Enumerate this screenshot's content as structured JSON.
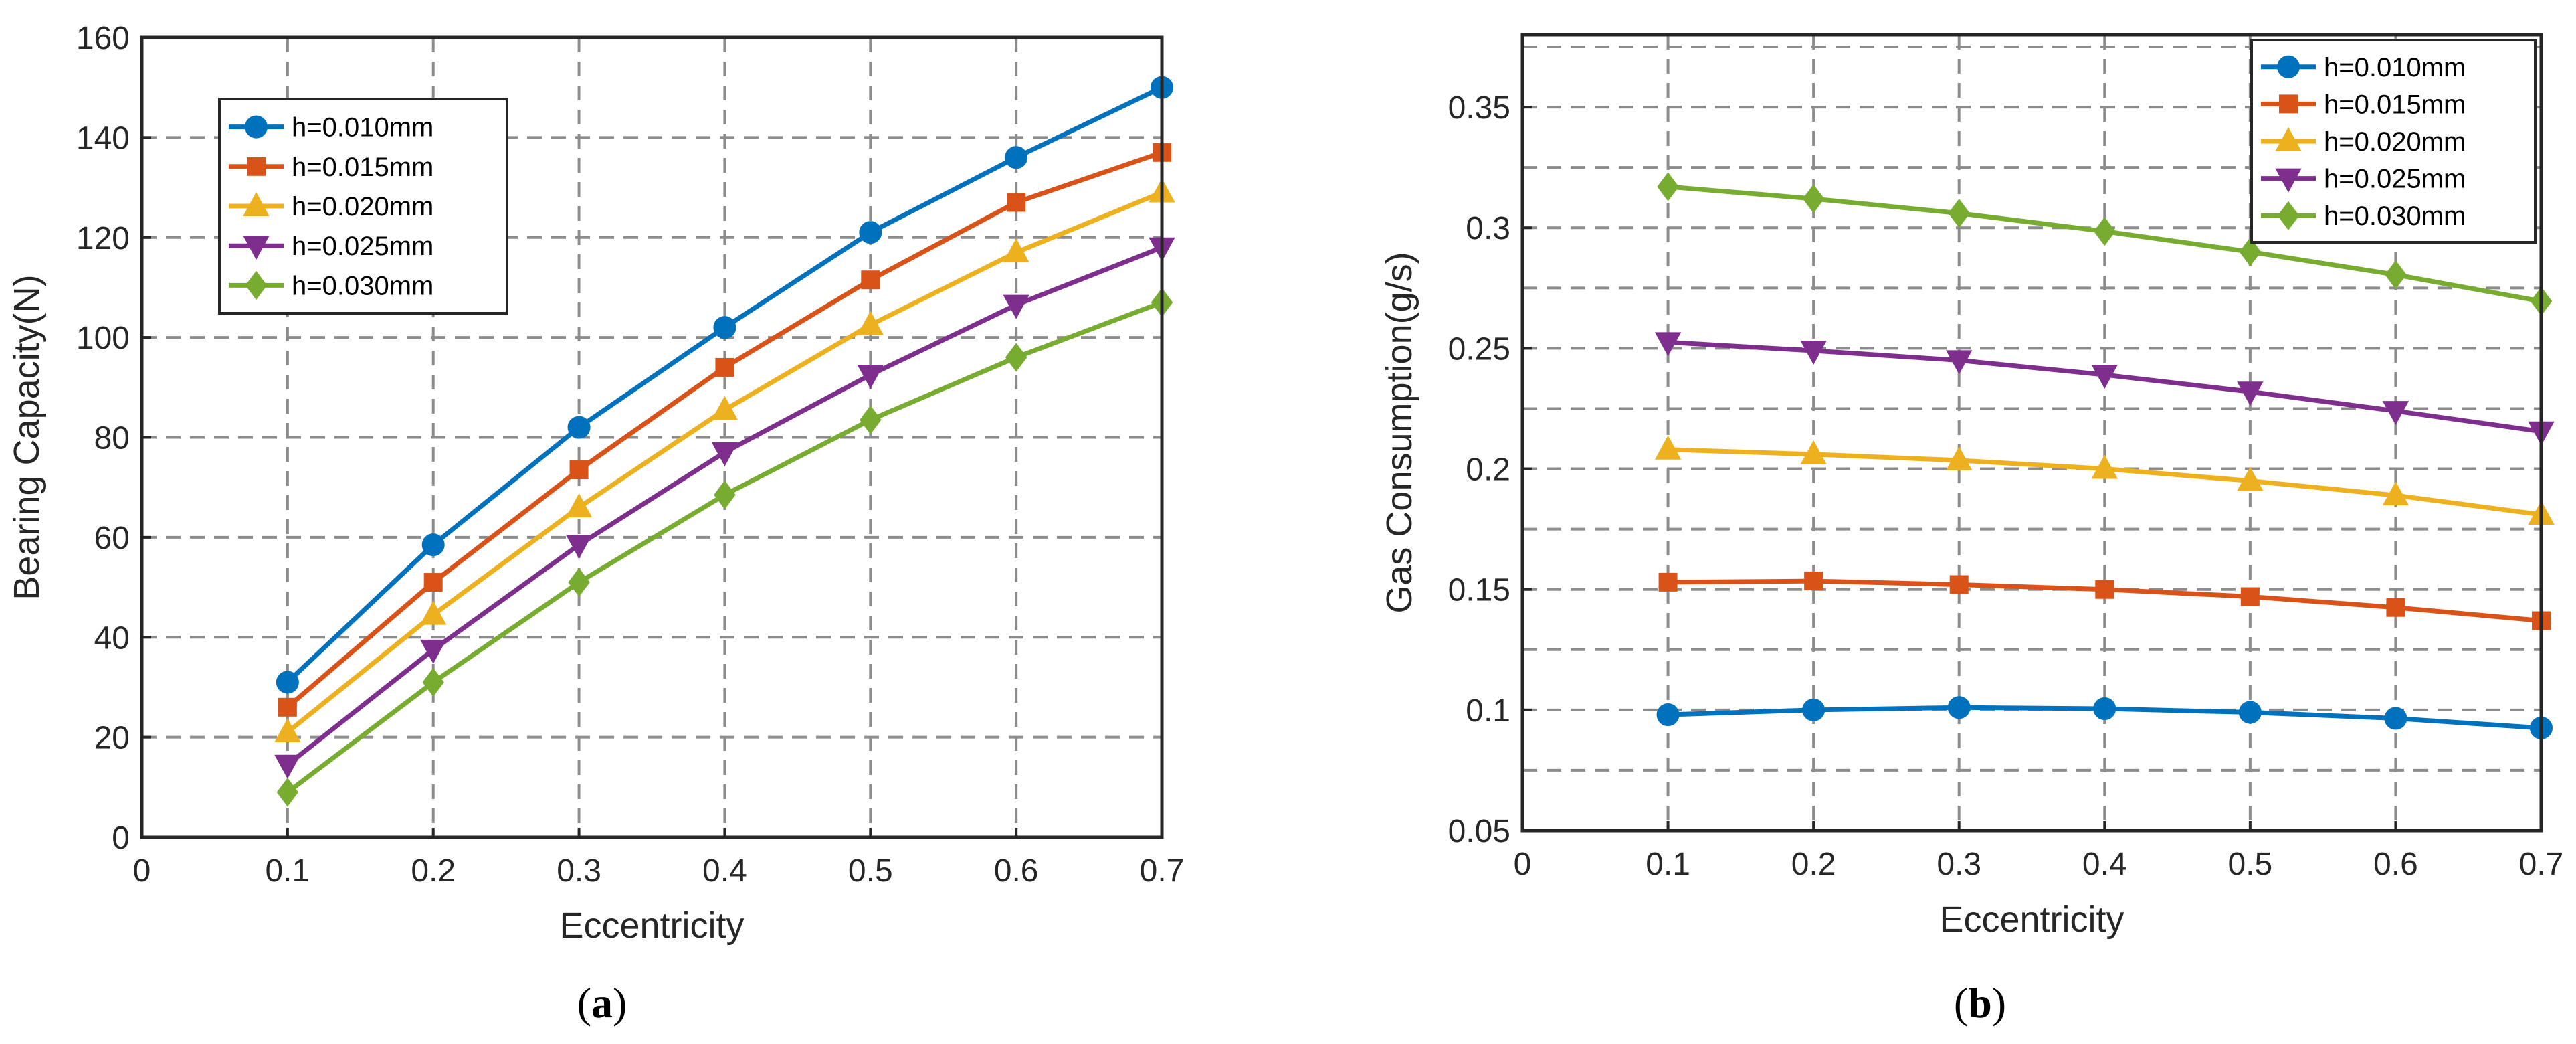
{
  "colors": {
    "blue": "#0072BD",
    "orange": "#D95319",
    "yellow": "#EDB120",
    "purple": "#7E2F8E",
    "green": "#77AC30"
  },
  "captions": {
    "a_open": "(",
    "a_letter": "a",
    "a_close": ")",
    "b_open": "(",
    "b_letter": "b",
    "b_close": ")"
  },
  "chart_data": [
    {
      "type": "line",
      "panel": "a",
      "title": "",
      "xlabel": "Eccentricity",
      "ylabel": "Bearing Capacity(N)",
      "xlim": [
        0,
        0.7
      ],
      "ylim": [
        0,
        160
      ],
      "xticks": [
        0,
        0.1,
        0.2,
        0.3,
        0.4,
        0.5,
        0.6,
        0.7
      ],
      "yticks": [
        0,
        20,
        40,
        60,
        80,
        100,
        120,
        140,
        160
      ],
      "xtick_labels": [
        "0",
        "0.1",
        "0.2",
        "0.3",
        "0.4",
        "0.5",
        "0.6",
        "0.7"
      ],
      "ytick_labels": [
        "0",
        "20",
        "40",
        "60",
        "80",
        "100",
        "120",
        "140",
        "160"
      ],
      "grid": true,
      "legend_position": "top-left",
      "x": [
        0.1,
        0.2,
        0.3,
        0.4,
        0.5,
        0.6,
        0.7
      ],
      "series": [
        {
          "name": "h=0.010mm",
          "color": "#0072BD",
          "marker": "circle",
          "values": [
            31,
            58.5,
            82,
            102,
            121,
            136,
            150
          ]
        },
        {
          "name": "h=0.015mm",
          "color": "#D95319",
          "marker": "square",
          "values": [
            26,
            51,
            73.5,
            94,
            111.5,
            127,
            137
          ]
        },
        {
          "name": "h=0.020mm",
          "color": "#EDB120",
          "marker": "triangle-up",
          "values": [
            21,
            44.5,
            66,
            85.5,
            102.5,
            117,
            129
          ]
        },
        {
          "name": "h=0.025mm",
          "color": "#7E2F8E",
          "marker": "triangle-down",
          "values": [
            14.5,
            37.5,
            58.5,
            77,
            92.5,
            106.5,
            118
          ]
        },
        {
          "name": "h=0.030mm",
          "color": "#77AC30",
          "marker": "diamond",
          "values": [
            9,
            31,
            51,
            68.5,
            83.5,
            96,
            107
          ]
        }
      ]
    },
    {
      "type": "line",
      "panel": "b",
      "title": "",
      "xlabel": "Eccentricity",
      "ylabel": "Gas Consumption(g/s)",
      "xlim": [
        0,
        0.7
      ],
      "ylim": [
        0.05,
        0.38
      ],
      "xticks": [
        0,
        0.1,
        0.2,
        0.3,
        0.4,
        0.5,
        0.6,
        0.7
      ],
      "yticks": [
        0.05,
        0.1,
        0.15,
        0.2,
        0.25,
        0.3,
        0.35
      ],
      "minor_grid_y": [
        0.075,
        0.125,
        0.175,
        0.225,
        0.275,
        0.325,
        0.375
      ],
      "xtick_labels": [
        "0",
        "0.1",
        "0.2",
        "0.3",
        "0.4",
        "0.5",
        "0.6",
        "0.7"
      ],
      "ytick_labels": [
        "0.05",
        "0.1",
        "0.15",
        "0.2",
        "0.25",
        "0.3",
        "0.35"
      ],
      "grid": true,
      "legend_position": "top-right",
      "x": [
        0.1,
        0.2,
        0.3,
        0.4,
        0.5,
        0.6,
        0.7
      ],
      "series": [
        {
          "name": "h=0.010mm",
          "color": "#0072BD",
          "marker": "circle",
          "values": [
            0.098,
            0.1,
            0.101,
            0.1005,
            0.099,
            0.0965,
            0.0925
          ]
        },
        {
          "name": "h=0.015mm",
          "color": "#D95319",
          "marker": "square",
          "values": [
            0.153,
            0.1535,
            0.152,
            0.15,
            0.147,
            0.1425,
            0.137
          ]
        },
        {
          "name": "h=0.020mm",
          "color": "#EDB120",
          "marker": "triangle-up",
          "values": [
            0.208,
            0.206,
            0.2035,
            0.2,
            0.195,
            0.189,
            0.181
          ]
        },
        {
          "name": "h=0.025mm",
          "color": "#7E2F8E",
          "marker": "triangle-down",
          "values": [
            0.2525,
            0.249,
            0.245,
            0.239,
            0.232,
            0.224,
            0.2155
          ]
        },
        {
          "name": "h=0.030mm",
          "color": "#77AC30",
          "marker": "diamond",
          "values": [
            0.317,
            0.312,
            0.306,
            0.2985,
            0.29,
            0.2805,
            0.2695
          ]
        }
      ]
    }
  ]
}
